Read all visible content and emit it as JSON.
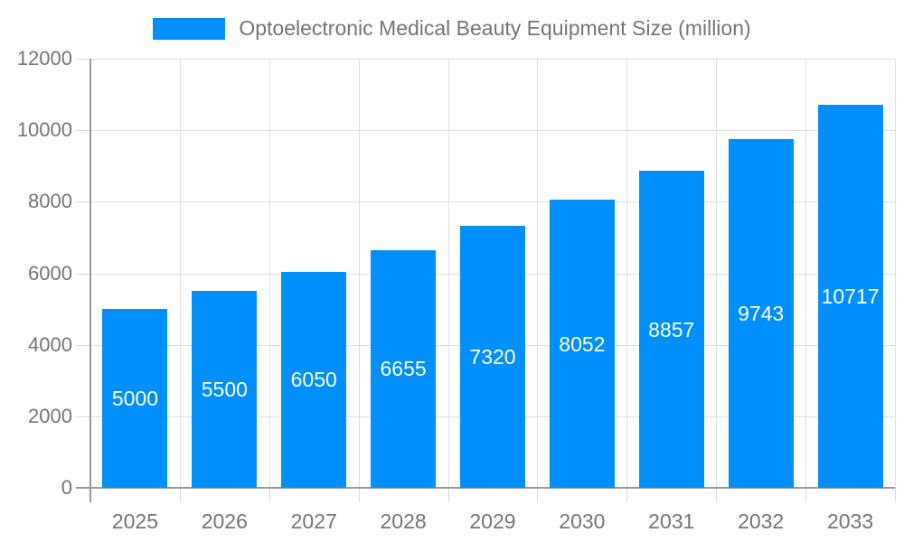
{
  "legend": {
    "label": "Optoelectronic Medical Beauty Equipment Size (million)",
    "swatch_color": "#008FFB"
  },
  "chart_data": {
    "type": "bar",
    "title": "Optoelectronic Medical Beauty Equipment Size (million)",
    "series": [
      {
        "name": "Optoelectronic Medical Beauty Equipment Size (million)",
        "values": [
          5000,
          5500,
          6050,
          6655,
          7320,
          8052,
          8857,
          9743,
          10717
        ]
      }
    ],
    "categories": [
      "2025",
      "2026",
      "2027",
      "2028",
      "2029",
      "2030",
      "2031",
      "2032",
      "2033"
    ],
    "value_labels": [
      "5000",
      "5500",
      "6050",
      "6655",
      "7320",
      "8052",
      "8857",
      "9743",
      "10717"
    ],
    "xlabel": "",
    "ylabel": "",
    "ylim": [
      0,
      12000
    ],
    "yticks": [
      0,
      2000,
      4000,
      6000,
      8000,
      10000,
      12000
    ],
    "grid": true,
    "legend_position": "top",
    "bar_color": "#008FFB",
    "value_label_color": "#ffffff",
    "value_label_position": "inside-center"
  },
  "colors": {
    "bar": "#008FFB",
    "grid": "#e0e0e0",
    "axis_line": "#999999",
    "tick": "#d9d9d9",
    "axis_label": "#757575",
    "value_label": "#ffffff",
    "background": "#ffffff"
  }
}
